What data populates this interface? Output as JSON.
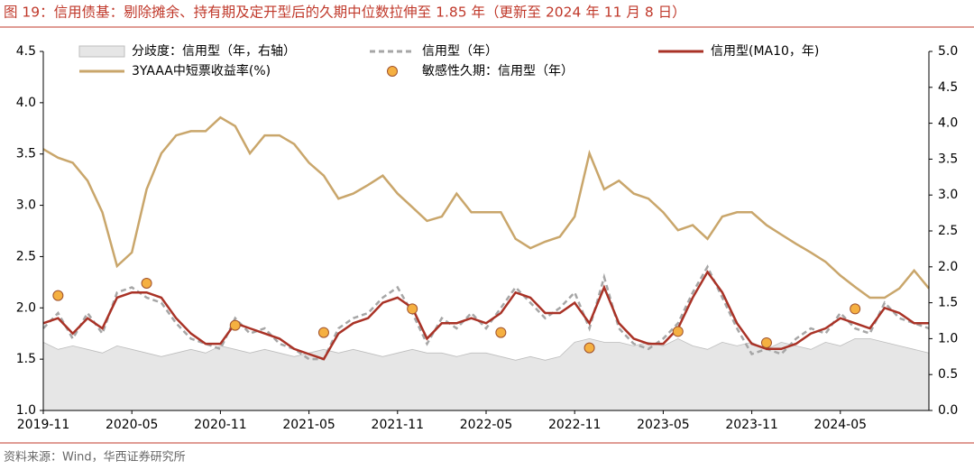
{
  "chart_data": {
    "type": "combo",
    "title": "图 19：信用债基：剔除摊余、持有期及定开型后的久期中位数拉伸至 1.85 年（更新至 2024 年 11 月 8 日）",
    "source": "资料来源：Wind，华西证券研究所",
    "x": [
      "2019-11",
      "2019-12",
      "2020-01",
      "2020-02",
      "2020-03",
      "2020-04",
      "2020-05",
      "2020-06",
      "2020-07",
      "2020-08",
      "2020-09",
      "2020-10",
      "2020-11",
      "2020-12",
      "2021-01",
      "2021-02",
      "2021-03",
      "2021-04",
      "2021-05",
      "2021-06",
      "2021-07",
      "2021-08",
      "2021-09",
      "2021-10",
      "2021-11",
      "2021-12",
      "2022-01",
      "2022-02",
      "2022-03",
      "2022-04",
      "2022-05",
      "2022-06",
      "2022-07",
      "2022-08",
      "2022-09",
      "2022-10",
      "2022-11",
      "2022-12",
      "2023-01",
      "2023-02",
      "2023-03",
      "2023-04",
      "2023-05",
      "2023-06",
      "2023-07",
      "2023-08",
      "2023-09",
      "2023-10",
      "2023-11",
      "2023-12",
      "2024-01",
      "2024-02",
      "2024-03",
      "2024-04",
      "2024-05",
      "2024-06",
      "2024-07",
      "2024-08",
      "2024-09",
      "2024-10",
      "2024-11"
    ],
    "xticks": [
      "2019-11",
      "2020-05",
      "2020-11",
      "2021-05",
      "2021-11",
      "2022-05",
      "2022-11",
      "2023-05",
      "2023-11",
      "2024-05"
    ],
    "ylim": [
      1,
      4.5
    ],
    "yticks": [
      {
        "value": 1,
        "label": "1.0"
      },
      1.5,
      {
        "value": 2,
        "label": "2.0"
      },
      2.5,
      {
        "value": 3,
        "label": "3.0"
      },
      3.5,
      {
        "value": 4,
        "label": "4.0"
      },
      4.5
    ],
    "y2lim": [
      0,
      5
    ],
    "y2ticks": [
      {
        "value": 0,
        "label": "0.0"
      },
      0.5,
      {
        "value": 1,
        "label": "1.0"
      },
      1.5,
      {
        "value": 2,
        "label": "2.0"
      },
      2.5,
      {
        "value": 3,
        "label": "3.0"
      },
      3.5,
      {
        "value": 4,
        "label": "4.0"
      },
      4.5,
      {
        "value": 5,
        "label": "5.0"
      }
    ],
    "series": [
      {
        "name": "分歧度：信用型（年，右轴）",
        "kind": "area",
        "axis": "y2",
        "color": "#e6e6e6",
        "values": [
          0.95,
          0.85,
          0.9,
          0.85,
          0.8,
          0.9,
          0.85,
          0.8,
          0.75,
          0.8,
          0.85,
          0.8,
          0.9,
          0.85,
          0.8,
          0.85,
          0.8,
          0.75,
          0.8,
          0.85,
          0.8,
          0.85,
          0.8,
          0.75,
          0.8,
          0.85,
          0.8,
          0.8,
          0.75,
          0.8,
          0.8,
          0.75,
          0.7,
          0.75,
          0.7,
          0.75,
          0.95,
          1.0,
          0.95,
          0.95,
          0.9,
          0.95,
          0.9,
          1.0,
          0.9,
          0.85,
          0.95,
          0.9,
          0.95,
          0.85,
          0.95,
          0.9,
          0.85,
          0.95,
          0.9,
          1.0,
          1.0,
          0.95,
          0.9,
          0.85,
          0.8
        ]
      },
      {
        "name": "信用型（年）",
        "kind": "dashed",
        "color": "#a6a6a6",
        "values": [
          1.8,
          1.95,
          1.7,
          1.95,
          1.75,
          2.15,
          2.2,
          2.1,
          2.05,
          1.85,
          1.7,
          1.65,
          1.6,
          1.9,
          1.75,
          1.8,
          1.65,
          1.6,
          1.5,
          1.5,
          1.8,
          1.9,
          1.95,
          2.1,
          2.2,
          1.95,
          1.65,
          1.9,
          1.8,
          1.95,
          1.8,
          2.0,
          2.2,
          2.05,
          1.9,
          2.0,
          2.15,
          1.8,
          2.3,
          1.8,
          1.65,
          1.6,
          1.7,
          1.85,
          2.15,
          2.4,
          2.1,
          1.8,
          1.55,
          1.6,
          1.55,
          1.7,
          1.8,
          1.75,
          1.95,
          1.8,
          1.75,
          2.05,
          1.9,
          1.85,
          1.8
        ]
      },
      {
        "name": "信用型(MA10，年)",
        "kind": "line",
        "color": "#a93226",
        "values": [
          1.85,
          1.9,
          1.75,
          1.9,
          1.8,
          2.1,
          2.15,
          2.15,
          2.1,
          1.9,
          1.75,
          1.65,
          1.65,
          1.85,
          1.8,
          1.75,
          1.7,
          1.6,
          1.55,
          1.5,
          1.75,
          1.85,
          1.9,
          2.05,
          2.1,
          2.0,
          1.7,
          1.85,
          1.85,
          1.9,
          1.85,
          1.95,
          2.15,
          2.1,
          1.95,
          1.95,
          2.05,
          1.85,
          2.2,
          1.85,
          1.7,
          1.65,
          1.65,
          1.8,
          2.1,
          2.35,
          2.15,
          1.85,
          1.65,
          1.6,
          1.6,
          1.65,
          1.75,
          1.8,
          1.9,
          1.85,
          1.8,
          2.0,
          1.95,
          1.85,
          1.85
        ]
      },
      {
        "name": "3YAAA中短票收益率(%)",
        "kind": "line",
        "axis": "y2",
        "color": "#c9a66b",
        "values": [
          3.64,
          3.52,
          3.45,
          3.2,
          2.76,
          2.01,
          2.2,
          3.08,
          3.58,
          3.83,
          3.89,
          3.89,
          4.08,
          3.96,
          3.58,
          3.83,
          3.83,
          3.71,
          3.45,
          3.27,
          2.95,
          3.02,
          3.14,
          3.27,
          3.02,
          2.83,
          2.64,
          2.7,
          3.02,
          2.76,
          2.76,
          2.76,
          2.39,
          2.26,
          2.35,
          2.42,
          2.7,
          3.58,
          3.08,
          3.2,
          3.02,
          2.95,
          2.76,
          2.51,
          2.58,
          2.39,
          2.7,
          2.76,
          2.76,
          2.58,
          2.45,
          2.32,
          2.2,
          2.07,
          1.88,
          1.72,
          1.57,
          1.57,
          1.7,
          1.95,
          1.7
        ]
      },
      {
        "name": "敏感性久期：信用型（年）",
        "kind": "scatter",
        "color": "#f5b041",
        "x": [
          "2019-12",
          "2020-06",
          "2020-12",
          "2021-06",
          "2021-12",
          "2022-06",
          "2022-12",
          "2023-06",
          "2023-12",
          "2024-06"
        ],
        "values": [
          2.12,
          2.24,
          1.83,
          1.76,
          1.99,
          1.76,
          1.61,
          1.77,
          1.66,
          1.99
        ]
      }
    ]
  }
}
